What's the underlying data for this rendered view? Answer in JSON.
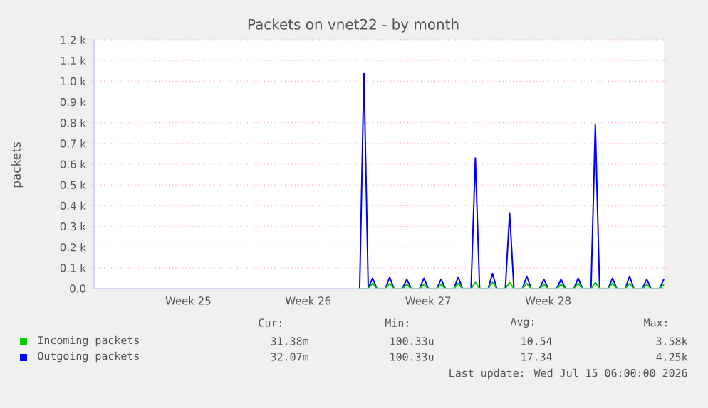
{
  "chart_data": {
    "type": "line",
    "title": "Packets on vnet22 - by month",
    "ylabel": "packets",
    "categories": [
      null,
      null,
      null,
      null,
      null,
      null,
      null,
      null,
      null,
      null,
      null,
      null,
      null,
      null,
      null,
      null,
      null,
      null,
      null,
      null,
      null,
      null,
      "Week 25",
      null,
      null,
      null,
      null,
      null,
      null,
      null,
      null,
      null,
      null,
      null,
      null,
      null,
      null,
      null,
      null,
      null,
      null,
      null,
      null,
      null,
      null,
      null,
      null,
      null,
      null,
      null,
      "Week 26",
      null,
      null,
      null,
      null,
      null,
      null,
      null,
      null,
      null,
      null,
      null,
      null,
      null,
      null,
      null,
      null,
      null,
      null,
      null,
      null,
      null,
      null,
      null,
      null,
      null,
      null,
      null,
      "Week 27",
      null,
      null,
      null,
      null,
      null,
      null,
      null,
      null,
      null,
      null,
      null,
      null,
      null,
      null,
      null,
      null,
      null,
      null,
      null,
      null,
      null,
      null,
      null,
      null,
      null,
      null,
      null,
      "Week 28",
      null,
      null,
      null,
      null,
      null,
      null,
      null,
      null,
      null,
      null,
      null,
      null,
      null,
      null,
      null,
      null,
      null,
      null,
      null,
      null,
      null,
      null,
      null,
      null,
      null,
      null,
      null
    ],
    "ylim": [
      0,
      1200
    ],
    "yticks": [
      {
        "value": 0,
        "label": "0.0"
      },
      {
        "value": 100,
        "label": "0.1 k"
      },
      {
        "value": 200,
        "label": "0.2 k"
      },
      {
        "value": 300,
        "label": "0.3 k"
      },
      {
        "value": 400,
        "label": "0.4 k"
      },
      {
        "value": 500,
        "label": "0.5 k"
      },
      {
        "value": 600,
        "label": "0.6 k"
      },
      {
        "value": 700,
        "label": "0.7 k"
      },
      {
        "value": 800,
        "label": "0.8 k"
      },
      {
        "value": 900,
        "label": "0.9 k"
      },
      {
        "value": 1000,
        "label": "1.0 k"
      },
      {
        "value": 1100,
        "label": "1.1 k"
      },
      {
        "value": 1200,
        "label": "1.2 k"
      }
    ],
    "grid": "y",
    "legend": "bottom",
    "marker": "none",
    "line_style": "solid",
    "series": [
      {
        "name": "Outgoing packets",
        "color": "#0000ff",
        "values": [
          null,
          null,
          null,
          null,
          null,
          null,
          null,
          null,
          null,
          null,
          null,
          null,
          null,
          null,
          null,
          null,
          null,
          null,
          null,
          null,
          null,
          null,
          null,
          null,
          null,
          null,
          null,
          null,
          null,
          null,
          null,
          null,
          null,
          null,
          null,
          null,
          null,
          null,
          null,
          null,
          null,
          null,
          null,
          null,
          null,
          null,
          null,
          null,
          null,
          null,
          null,
          null,
          null,
          null,
          null,
          null,
          null,
          null,
          null,
          null,
          null,
          null,
          0,
          1040,
          0,
          50,
          0,
          0,
          0,
          55,
          0,
          0,
          0,
          45,
          0,
          0,
          0,
          50,
          0,
          0,
          0,
          45,
          0,
          0,
          0,
          55,
          0,
          0,
          0,
          630,
          0,
          0,
          0,
          73,
          0,
          0,
          0,
          365,
          0,
          0,
          0,
          60,
          0,
          0,
          0,
          45,
          0,
          0,
          0,
          45,
          0,
          0,
          0,
          50,
          0,
          0,
          0,
          790,
          0,
          0,
          0,
          50,
          0,
          0,
          0,
          60,
          0,
          0,
          0,
          45,
          0,
          0,
          0,
          45
        ]
      },
      {
        "name": "Incoming packets",
        "color": "#00cc00",
        "values": [
          null,
          null,
          null,
          null,
          null,
          null,
          null,
          null,
          null,
          null,
          null,
          null,
          null,
          null,
          null,
          null,
          null,
          null,
          null,
          null,
          null,
          null,
          null,
          null,
          null,
          null,
          null,
          null,
          null,
          null,
          null,
          null,
          null,
          null,
          null,
          null,
          null,
          null,
          null,
          null,
          null,
          null,
          null,
          null,
          null,
          null,
          null,
          null,
          null,
          null,
          null,
          null,
          null,
          null,
          null,
          null,
          null,
          null,
          null,
          null,
          null,
          null,
          0,
          0,
          0,
          25,
          0,
          0,
          0,
          25,
          0,
          0,
          0,
          20,
          0,
          0,
          0,
          20,
          0,
          0,
          0,
          20,
          0,
          0,
          0,
          25,
          0,
          0,
          0,
          30,
          0,
          0,
          0,
          30,
          0,
          0,
          0,
          30,
          0,
          0,
          0,
          25,
          0,
          0,
          0,
          20,
          0,
          0,
          0,
          20,
          0,
          0,
          0,
          25,
          0,
          0,
          0,
          30,
          0,
          0,
          0,
          25,
          0,
          0,
          0,
          25,
          0,
          0,
          0,
          20,
          0,
          0,
          0,
          20
        ]
      }
    ],
    "annotations": [
      "Cur:",
      "Min:",
      "Avg:",
      "Max:",
      "31.38m",
      "100.33u",
      "10.54",
      "3.58k",
      "32.07m",
      "100.33u",
      "17.34",
      "4.25k",
      "Last update: Wed Jul 15 06:00:00 2026"
    ]
  }
}
